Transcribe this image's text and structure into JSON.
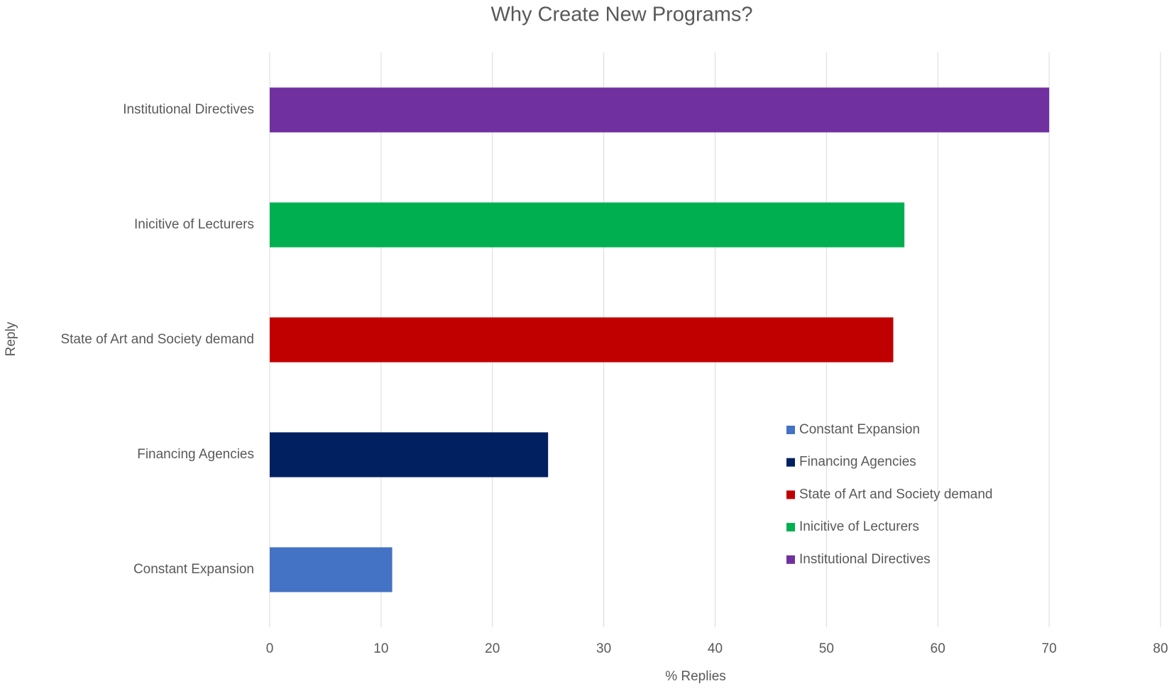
{
  "chart_data": {
    "type": "bar",
    "orientation": "horizontal",
    "title": "Why Create New Programs?",
    "x_label": "% Replies",
    "y_label": "Reply",
    "categories": [
      "Constant Expansion",
      "Financing Agencies",
      "State of Art and Society demand",
      "Inicitive of Lecturers",
      "Institutional Directives"
    ],
    "values": [
      11,
      25,
      56,
      57,
      70
    ],
    "colors": [
      "#4472c4",
      "#002060",
      "#c00000",
      "#00b050",
      "#7030a0"
    ],
    "xlim": [
      0,
      80
    ],
    "xticks": [
      0,
      10,
      20,
      30,
      40,
      50,
      60,
      70,
      80
    ],
    "grid": true,
    "legend": "right"
  }
}
